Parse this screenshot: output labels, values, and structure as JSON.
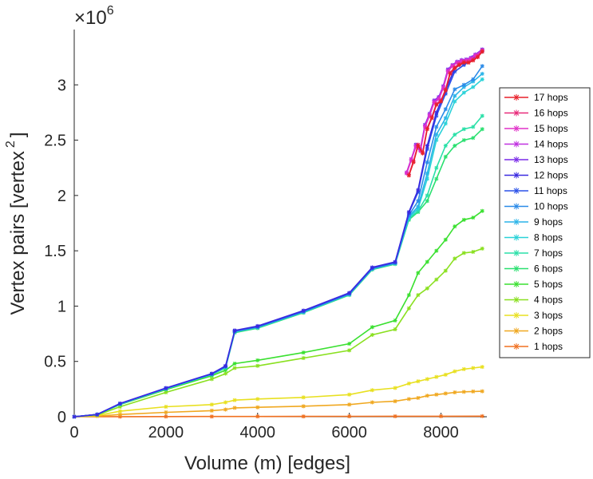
{
  "chart_data": {
    "type": "line",
    "title": "",
    "xlabel": "Volume (m) [edges]",
    "ylabel": "Vertex pairs [vertex",
    "ylabel_sup": "2",
    "ylabel_close": "]",
    "y_exponent_label": "×10",
    "y_exponent_power": "6",
    "xlim": [
      0,
      9000
    ],
    "ylim": [
      0,
      3500000
    ],
    "xticks": [
      0,
      2000,
      4000,
      6000,
      8000
    ],
    "xtick_labels": [
      "0",
      "2000",
      "4000",
      "6000",
      "8000"
    ],
    "yticks": [
      0,
      500000,
      1000000,
      1500000,
      2000000,
      2500000,
      3000000
    ],
    "ytick_labels": [
      "0",
      "0.5",
      "1",
      "1.5",
      "2",
      "2.5",
      "3"
    ],
    "grid": false,
    "legend_position": "right",
    "series": [
      {
        "name": "17 hops",
        "color": "#e8202a",
        "x": [
          7300,
          7400,
          7500,
          7600,
          7700,
          7800,
          7900,
          8000,
          8100,
          8200,
          8300,
          8400,
          8500,
          8600,
          8700,
          8800,
          8900
        ],
        "y": [
          2180000,
          2300000,
          2450000,
          2380000,
          2600000,
          2700000,
          2820000,
          2850000,
          2950000,
          3100000,
          3150000,
          3180000,
          3200000,
          3200000,
          3220000,
          3250000,
          3300000
        ]
      },
      {
        "name": "16 hops",
        "color": "#e82a7a",
        "x": [
          7300,
          7400,
          7500,
          7600,
          7700,
          7800,
          7900,
          8000,
          8100,
          8200,
          8300,
          8400,
          8500,
          8600,
          8700,
          8800,
          8900
        ],
        "y": [
          2190000,
          2310000,
          2460000,
          2390000,
          2610000,
          2710000,
          2830000,
          2860000,
          2960000,
          3110000,
          3160000,
          3190000,
          3210000,
          3210000,
          3230000,
          3260000,
          3310000
        ]
      },
      {
        "name": "15 hops",
        "color": "#e030c8",
        "x": [
          7250,
          7350,
          7450,
          7550,
          7650,
          7750,
          7850,
          7950,
          8050,
          8150,
          8250,
          8350,
          8450,
          8550,
          8650,
          8750,
          8900
        ],
        "y": [
          2200000,
          2320000,
          2440000,
          2400000,
          2620000,
          2720000,
          2840000,
          2870000,
          2970000,
          3120000,
          3170000,
          3200000,
          3215000,
          3220000,
          3235000,
          3265000,
          3310000
        ]
      },
      {
        "name": "14 hops",
        "color": "#c030e0",
        "x": [
          7250,
          7350,
          7450,
          7550,
          7650,
          7750,
          7850,
          7950,
          8050,
          8150,
          8250,
          8350,
          8450,
          8550,
          8650,
          8750,
          8900
        ],
        "y": [
          2210000,
          2330000,
          2450000,
          2410000,
          2630000,
          2730000,
          2850000,
          2880000,
          2980000,
          3130000,
          3175000,
          3205000,
          3220000,
          3225000,
          3240000,
          3270000,
          3315000
        ]
      },
      {
        "name": "13 hops",
        "color": "#7a2ae8",
        "x": [
          7250,
          7350,
          7450,
          7550,
          7650,
          7750,
          7850,
          7950,
          8050,
          8150,
          8250,
          8350,
          8450,
          8550,
          8650,
          8750,
          8900
        ],
        "y": [
          2200000,
          2320000,
          2460000,
          2420000,
          2640000,
          2740000,
          2860000,
          2890000,
          2990000,
          3140000,
          3180000,
          3210000,
          3225000,
          3230000,
          3245000,
          3275000,
          3320000
        ]
      },
      {
        "name": "12 hops",
        "color": "#3a2ae0",
        "x": [
          0,
          500,
          1000,
          2000,
          3000,
          3300,
          3500,
          4000,
          5000,
          6000,
          6500,
          7000,
          7300,
          7500,
          7700,
          7900,
          8100,
          8300,
          8500,
          8700,
          8900
        ],
        "y": [
          0,
          20000,
          120000,
          260000,
          390000,
          460000,
          780000,
          820000,
          960000,
          1120000,
          1350000,
          1400000,
          1850000,
          2050000,
          2450000,
          2750000,
          2950000,
          3150000,
          3200000,
          3250000,
          3320000
        ]
      },
      {
        "name": "11 hops",
        "color": "#2a50e8",
        "x": [
          0,
          500,
          1000,
          2000,
          3000,
          3300,
          3500,
          4000,
          5000,
          6000,
          6500,
          7000,
          7300,
          7500,
          7700,
          7900,
          8100,
          8300,
          8500,
          8700,
          8900
        ],
        "y": [
          0,
          20000,
          118000,
          258000,
          388000,
          455000,
          775000,
          815000,
          955000,
          1115000,
          1345000,
          1395000,
          1840000,
          2030000,
          2420000,
          2720000,
          2920000,
          3120000,
          3180000,
          3230000,
          3300000
        ]
      },
      {
        "name": "10 hops",
        "color": "#2a8ae8",
        "x": [
          0,
          500,
          1000,
          2000,
          3000,
          3300,
          3500,
          4000,
          5000,
          6000,
          6500,
          7000,
          7300,
          7500,
          7700,
          7900,
          8100,
          8300,
          8500,
          8700,
          8900
        ],
        "y": [
          0,
          20000,
          117000,
          256000,
          386000,
          452000,
          772000,
          812000,
          950000,
          1110000,
          1340000,
          1390000,
          1820000,
          1950000,
          2300000,
          2620000,
          2780000,
          2960000,
          3000000,
          3050000,
          3170000
        ]
      },
      {
        "name": "9 hops",
        "color": "#2ab4e8",
        "x": [
          0,
          500,
          1000,
          2000,
          3000,
          3300,
          3500,
          4000,
          5000,
          6000,
          6500,
          7000,
          7300,
          7500,
          7700,
          7900,
          8100,
          8300,
          8500,
          8700,
          8900
        ],
        "y": [
          0,
          20000,
          116000,
          255000,
          385000,
          450000,
          770000,
          810000,
          948000,
          1108000,
          1338000,
          1388000,
          1810000,
          1900000,
          2200000,
          2550000,
          2700000,
          2900000,
          2980000,
          3030000,
          3100000
        ]
      },
      {
        "name": "8 hops",
        "color": "#2ad2d8",
        "x": [
          0,
          500,
          1000,
          2000,
          3000,
          3300,
          3500,
          4000,
          5000,
          6000,
          6500,
          7000,
          7300,
          7500,
          7700,
          7900,
          8100,
          8300,
          8500,
          8700,
          8900
        ],
        "y": [
          0,
          20000,
          115000,
          254000,
          384000,
          448000,
          768000,
          808000,
          946000,
          1106000,
          1336000,
          1386000,
          1800000,
          1880000,
          2150000,
          2500000,
          2650000,
          2850000,
          2930000,
          2980000,
          3050000
        ]
      },
      {
        "name": "7 hops",
        "color": "#2ae0a8",
        "x": [
          0,
          500,
          1000,
          2000,
          3000,
          3300,
          3500,
          4000,
          5000,
          6000,
          6500,
          7000,
          7300,
          7500,
          7700,
          7900,
          8100,
          8300,
          8500,
          8700,
          8900
        ],
        "y": [
          0,
          20000,
          114000,
          252000,
          382000,
          445000,
          765000,
          805000,
          944000,
          1104000,
          1334000,
          1384000,
          1790000,
          1860000,
          2000000,
          2250000,
          2450000,
          2550000,
          2600000,
          2620000,
          2720000
        ]
      },
      {
        "name": "6 hops",
        "color": "#2ae070",
        "x": [
          0,
          500,
          1000,
          2000,
          3000,
          3300,
          3500,
          4000,
          5000,
          6000,
          6500,
          7000,
          7300,
          7500,
          7700,
          7900,
          8100,
          8300,
          8500,
          8700,
          8900
        ],
        "y": [
          0,
          20000,
          112000,
          250000,
          380000,
          440000,
          760000,
          800000,
          940000,
          1100000,
          1330000,
          1380000,
          1780000,
          1850000,
          1950000,
          2150000,
          2350000,
          2450000,
          2500000,
          2520000,
          2600000
        ]
      },
      {
        "name": "5 hops",
        "color": "#3ae030",
        "x": [
          0,
          500,
          1000,
          2000,
          3000,
          3300,
          3500,
          4000,
          5000,
          6000,
          6500,
          7000,
          7300,
          7500,
          7700,
          7900,
          8100,
          8300,
          8500,
          8700,
          8900
        ],
        "y": [
          0,
          20000,
          110000,
          245000,
          370000,
          420000,
          480000,
          510000,
          580000,
          660000,
          810000,
          870000,
          1100000,
          1300000,
          1400000,
          1500000,
          1600000,
          1720000,
          1780000,
          1800000,
          1860000
        ]
      },
      {
        "name": "4 hops",
        "color": "#8ae020",
        "x": [
          0,
          500,
          1000,
          2000,
          3000,
          3300,
          3500,
          4000,
          5000,
          6000,
          6500,
          7000,
          7300,
          7500,
          7700,
          7900,
          8100,
          8300,
          8500,
          8700,
          8900
        ],
        "y": [
          0,
          15000,
          90000,
          220000,
          340000,
          390000,
          440000,
          460000,
          530000,
          600000,
          740000,
          790000,
          980000,
          1100000,
          1160000,
          1240000,
          1320000,
          1430000,
          1480000,
          1490000,
          1520000
        ]
      },
      {
        "name": "3 hops",
        "color": "#e8e020",
        "x": [
          0,
          500,
          1000,
          2000,
          3000,
          3300,
          3500,
          4000,
          5000,
          6000,
          6500,
          7000,
          7300,
          7500,
          7700,
          7900,
          8100,
          8300,
          8500,
          8700,
          8900
        ],
        "y": [
          0,
          10000,
          50000,
          90000,
          110000,
          130000,
          150000,
          160000,
          175000,
          200000,
          240000,
          260000,
          300000,
          320000,
          340000,
          360000,
          380000,
          410000,
          430000,
          440000,
          450000
        ]
      },
      {
        "name": "2 hops",
        "color": "#f0a820",
        "x": [
          0,
          500,
          1000,
          2000,
          3000,
          3300,
          3500,
          4000,
          5000,
          6000,
          6500,
          7000,
          7300,
          7500,
          7700,
          7900,
          8100,
          8300,
          8500,
          8700,
          8900
        ],
        "y": [
          0,
          5000,
          20000,
          40000,
          55000,
          65000,
          80000,
          85000,
          95000,
          110000,
          130000,
          140000,
          160000,
          170000,
          190000,
          200000,
          210000,
          220000,
          225000,
          228000,
          230000
        ]
      },
      {
        "name": "1 hops",
        "color": "#f07020",
        "x": [
          0,
          1000,
          2000,
          3000,
          4000,
          5000,
          6000,
          7000,
          8000,
          8900
        ],
        "y": [
          0,
          1000,
          1500,
          2000,
          2500,
          3000,
          3500,
          4000,
          4500,
          5000
        ]
      }
    ]
  }
}
